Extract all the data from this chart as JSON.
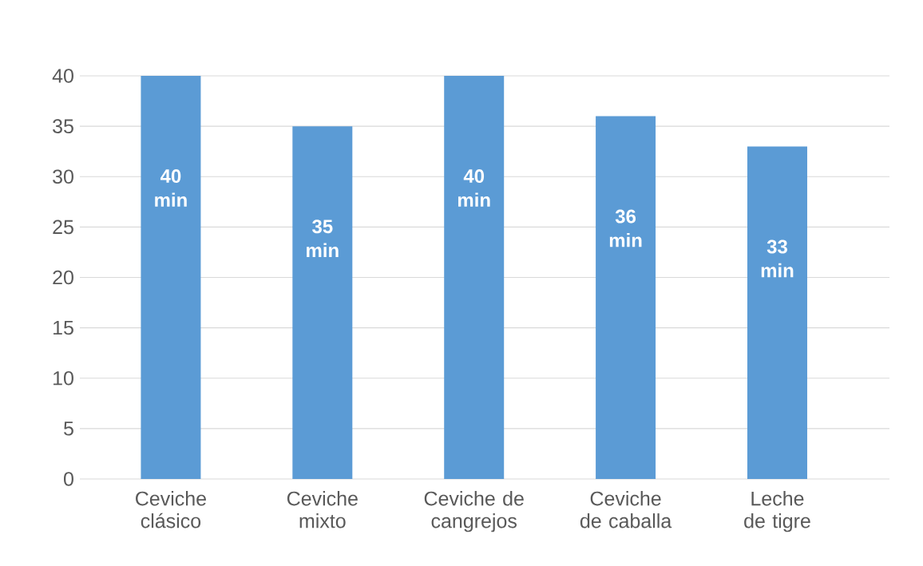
{
  "chart_data": {
    "type": "bar",
    "categories": [
      "Ceviche clásico",
      "Ceviche mixto",
      "Ceviche de cangrejos",
      "Ceviche de caballa",
      "Leche de tigre"
    ],
    "values": [
      40,
      35,
      40,
      36,
      33
    ],
    "value_labels": [
      "40 min",
      "35 min",
      "40 min",
      "36 min",
      "33 min"
    ],
    "color": "#5b9bd5",
    "ylim": [
      0,
      40
    ],
    "yticks": [
      0,
      5,
      10,
      15,
      20,
      25,
      30,
      35,
      40
    ],
    "grid": "y"
  }
}
